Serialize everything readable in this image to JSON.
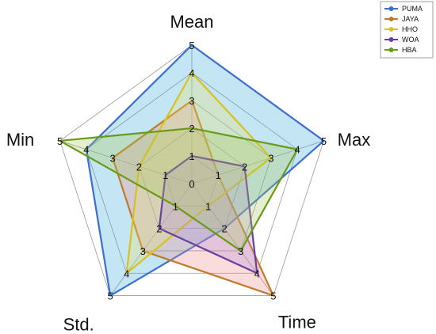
{
  "chart_data": {
    "type": "radar",
    "axes": [
      "Mean",
      "Max",
      "Time",
      "Std.",
      "Min"
    ],
    "center_label": "0",
    "rmax": 5,
    "series": [
      {
        "name": "PUMA",
        "color": "#3a6fd0",
        "fill": "#3aa9d6",
        "values": [
          5,
          5,
          2,
          5,
          4
        ]
      },
      {
        "name": "JAYA",
        "color": "#c07a2a",
        "fill": "#f08a8a",
        "values": [
          3,
          1,
          5,
          3,
          3
        ]
      },
      {
        "name": "HHO",
        "color": "#d9c21a",
        "fill": "#e8e070",
        "values": [
          4,
          3,
          1,
          4,
          2
        ]
      },
      {
        "name": "WOA",
        "color": "#6a3fa0",
        "fill": "#b090d8",
        "values": [
          1,
          2,
          4,
          2,
          1
        ]
      },
      {
        "name": "HBA",
        "color": "#6a9a1a",
        "fill": "#a8c860",
        "values": [
          2,
          4,
          3,
          1,
          5
        ]
      }
    ],
    "legend_position": "top-right",
    "grid": true
  }
}
